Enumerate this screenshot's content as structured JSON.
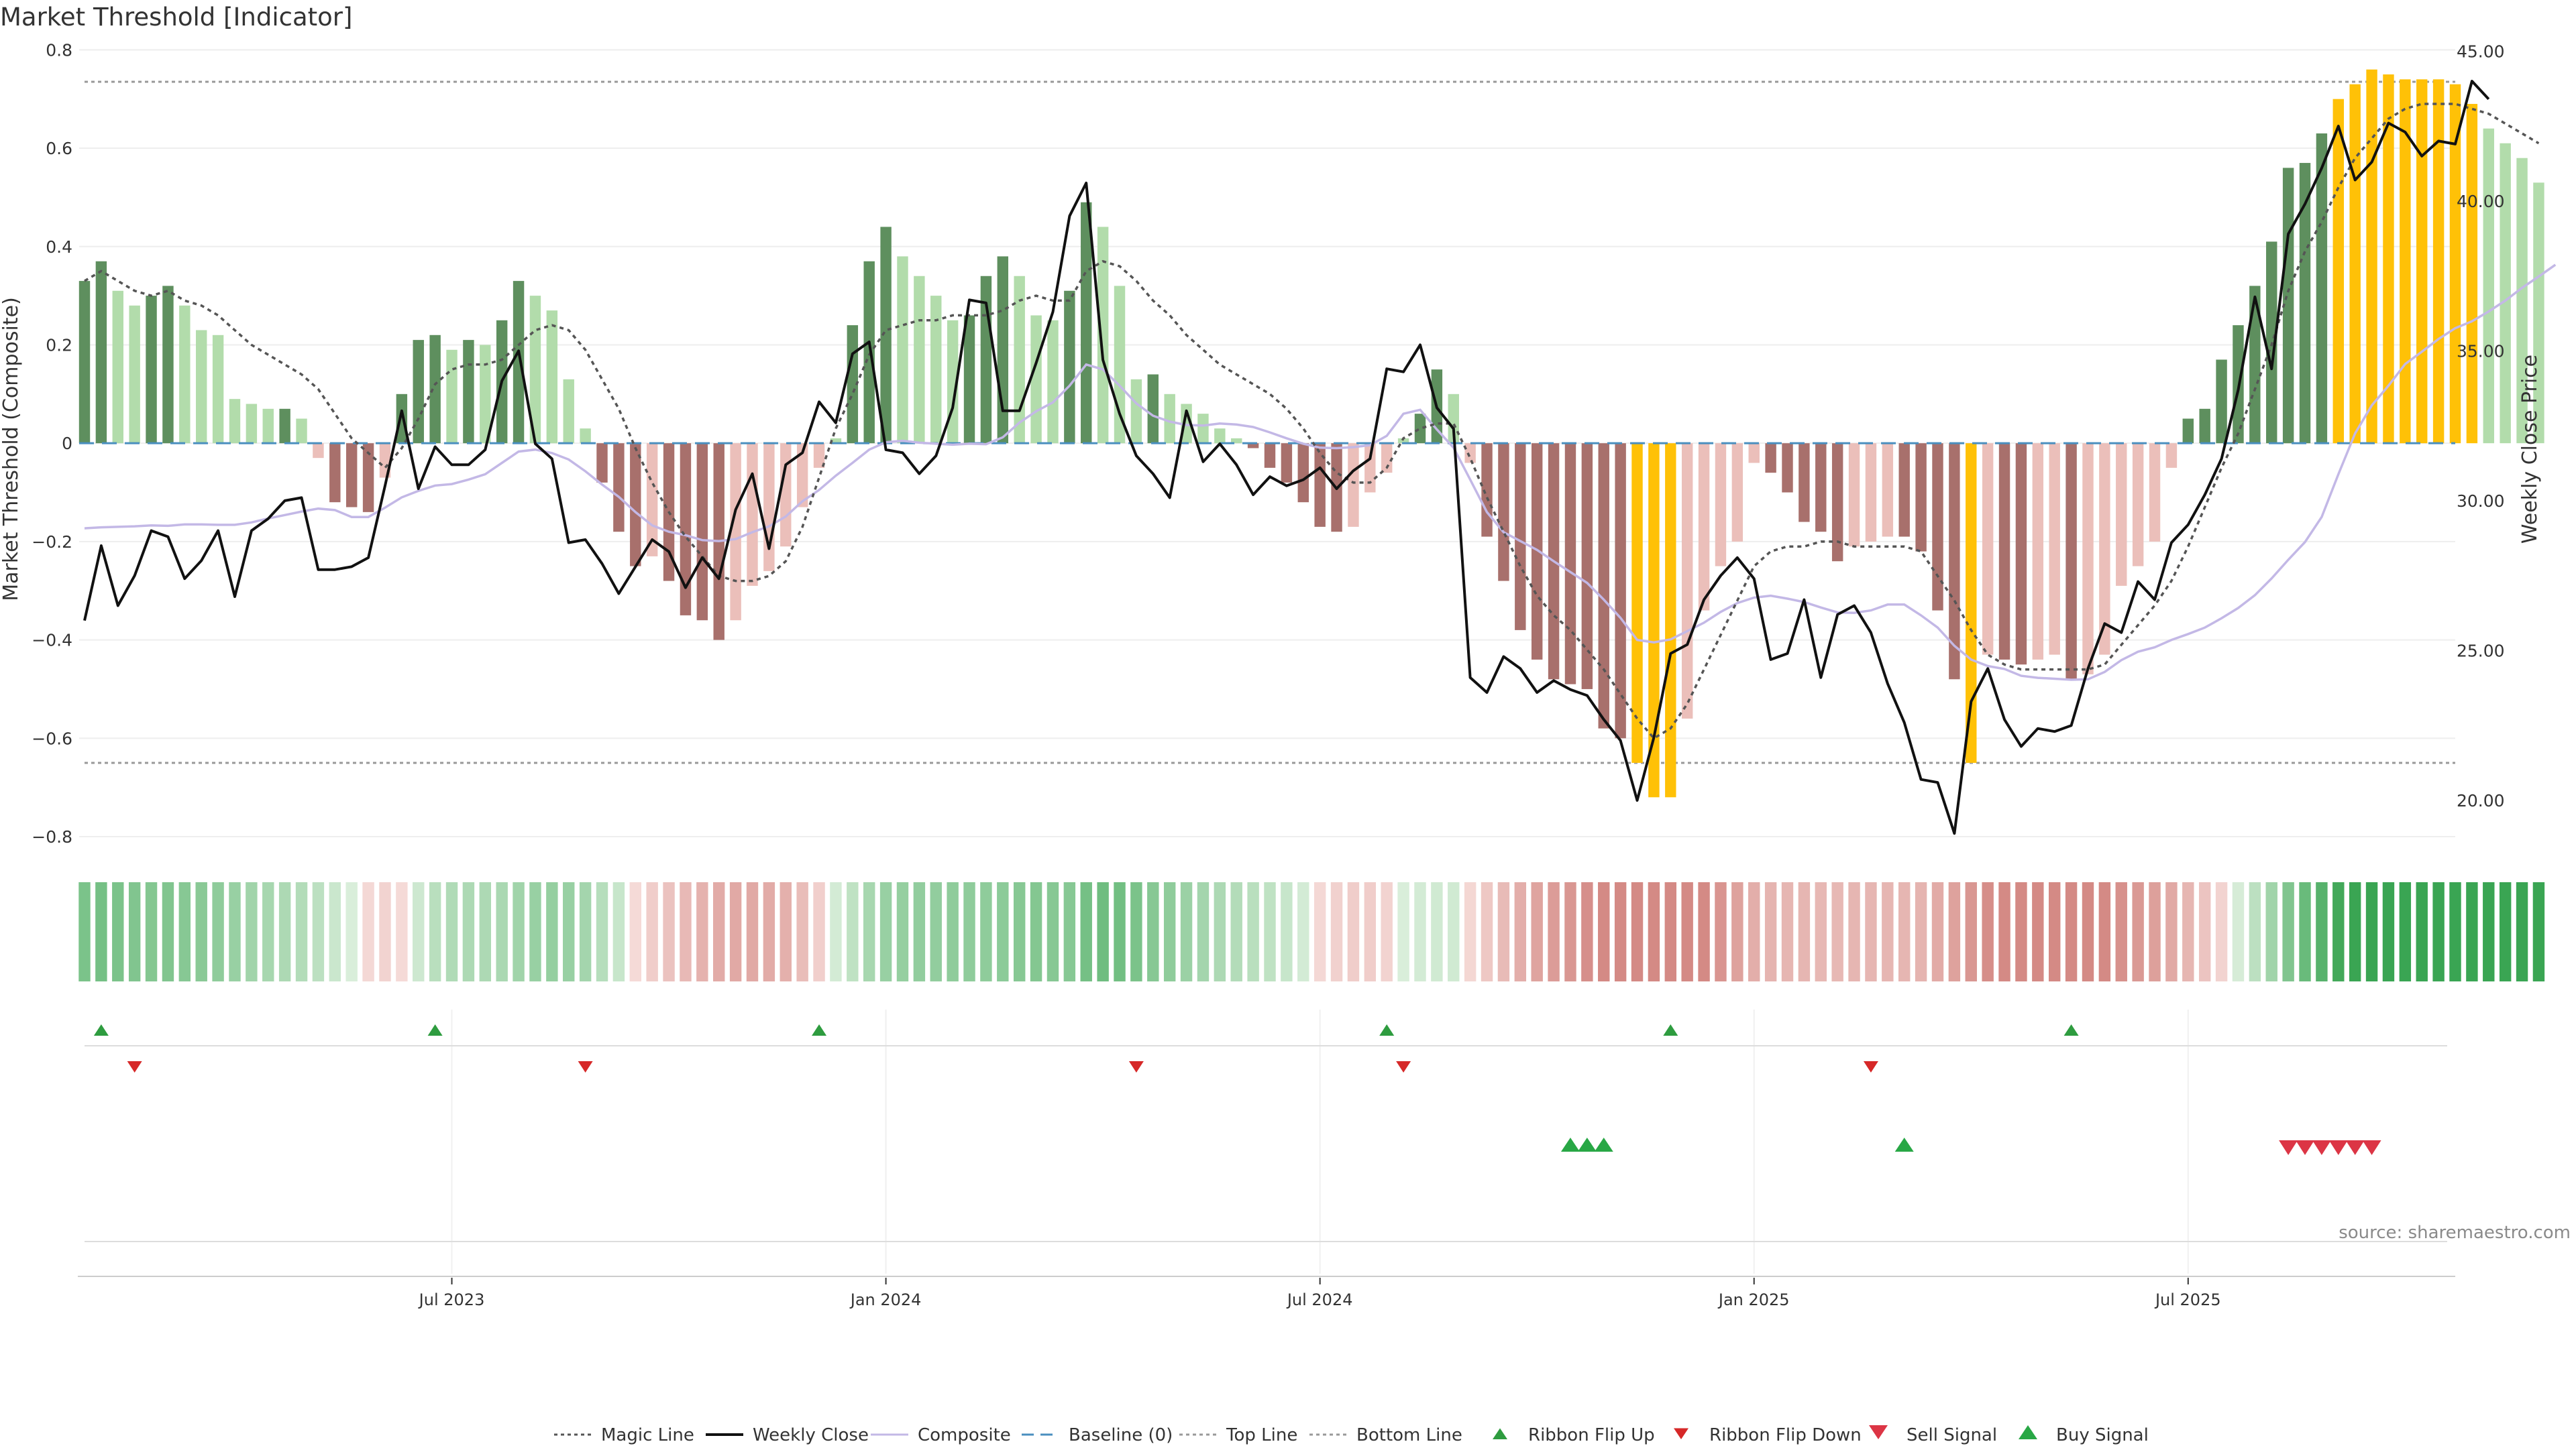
{
  "chart_data": {
    "title": "Market Threshold [Indicator]",
    "type": "bar",
    "ylabel_left": "Market Threshold (Composite)",
    "ylabel_right": "Weekly Close Price",
    "left_ticks": [
      "0.8",
      "0.6",
      "0.4",
      "0.2",
      "0",
      "−0.2",
      "−0.4",
      "−0.6",
      "−0.8"
    ],
    "right_ticks": [
      "45.00",
      "40.00",
      "35.00",
      "30.00",
      "25.00",
      "20.00"
    ],
    "ylim_left": [
      -0.83,
      0.84
    ],
    "ylim_right": [
      18.3,
      45.7
    ],
    "top_line": 0.735,
    "bottom_line": -0.65,
    "x_tick_labels": [
      "Jul 2023",
      "Jan 2024",
      "Jul 2024",
      "Jan 2025",
      "Jul 2025"
    ],
    "x_tick_weeks": [
      22,
      48,
      74,
      100,
      126
    ],
    "n_weeks": 143,
    "composite": [
      0.33,
      0.37,
      0.31,
      0.28,
      0.3,
      0.32,
      0.28,
      0.23,
      0.22,
      0.09,
      0.08,
      0.07,
      0.07,
      0.05,
      -0.03,
      -0.12,
      -0.13,
      -0.14,
      -0.07,
      0.1,
      0.21,
      0.22,
      0.19,
      0.21,
      0.2,
      0.25,
      0.33,
      0.3,
      0.27,
      0.13,
      0.03,
      -0.08,
      -0.18,
      -0.25,
      -0.23,
      -0.28,
      -0.35,
      -0.36,
      -0.4,
      -0.36,
      -0.29,
      -0.26,
      -0.21,
      -0.13,
      -0.05,
      0.01,
      0.24,
      0.37,
      0.44,
      0.38,
      0.34,
      0.3,
      0.25,
      0.26,
      0.34,
      0.38,
      0.34,
      0.26,
      0.25,
      0.31,
      0.49,
      0.44,
      0.32,
      0.13,
      0.14,
      0.1,
      0.08,
      0.06,
      0.03,
      0.01,
      -0.01,
      -0.05,
      -0.08,
      -0.12,
      -0.17,
      -0.18,
      -0.17,
      -0.1,
      -0.06,
      0.01,
      0.06,
      0.15,
      0.1,
      -0.04,
      -0.19,
      -0.28,
      -0.38,
      -0.44,
      -0.48,
      -0.49,
      -0.5,
      -0.58,
      -0.6,
      -0.65,
      -0.72,
      -0.72,
      -0.56,
      -0.34,
      -0.25,
      -0.2,
      -0.04,
      -0.06,
      -0.1,
      -0.16,
      -0.18,
      -0.24,
      -0.21,
      -0.2,
      -0.19,
      -0.19,
      -0.22,
      -0.34,
      -0.48,
      -0.65,
      -0.43,
      -0.44,
      -0.45,
      -0.44,
      -0.43,
      -0.48,
      -0.47,
      -0.43,
      -0.29,
      -0.25,
      -0.2,
      -0.05,
      0.05,
      0.07,
      0.17,
      0.24,
      0.32,
      0.41,
      0.56,
      0.57,
      0.63,
      0.7,
      0.73,
      0.76,
      0.75,
      0.74,
      0.74,
      0.74,
      0.73,
      0.69,
      0.64,
      0.61,
      0.58,
      0.53
    ],
    "weekly_close": [
      26.0,
      28.5,
      26.5,
      27.5,
      29.0,
      28.8,
      27.4,
      28.0,
      29.0,
      26.8,
      29.0,
      29.4,
      30.0,
      30.1,
      27.7,
      27.7,
      27.8,
      28.1,
      30.5,
      33.0,
      30.4,
      31.8,
      31.2,
      31.2,
      31.7,
      34.0,
      35.0,
      31.9,
      31.4,
      28.6,
      28.7,
      27.9,
      26.9,
      27.8,
      28.7,
      28.3,
      27.1,
      28.1,
      27.4,
      29.7,
      30.9,
      28.4,
      31.2,
      31.6,
      33.3,
      32.6,
      34.9,
      35.3,
      31.7,
      31.6,
      30.9,
      31.5,
      33.1,
      36.7,
      36.6,
      33.0,
      33.0,
      34.6,
      36.3,
      39.5,
      40.6,
      34.7,
      32.9,
      31.5,
      30.9,
      30.1,
      33.0,
      31.3,
      31.9,
      31.2,
      30.2,
      30.8,
      30.5,
      30.7,
      31.1,
      30.4,
      31.0,
      31.4,
      34.4,
      34.3,
      35.2,
      33.1,
      32.4,
      24.1,
      23.6,
      24.8,
      24.4,
      23.6,
      24.0,
      23.7,
      23.5,
      22.7,
      22.0,
      20.0,
      22.1,
      24.9,
      25.2,
      26.7,
      27.5,
      28.1,
      27.4,
      24.7,
      24.9,
      26.7,
      24.1,
      26.2,
      26.5,
      25.6,
      23.9,
      22.6,
      20.7,
      20.6,
      18.9,
      23.3,
      24.4,
      22.7,
      21.8,
      22.4,
      22.3,
      22.5,
      24.4,
      25.9,
      25.6,
      27.3,
      26.7,
      28.6,
      29.2,
      30.2,
      31.4,
      33.7,
      36.8,
      34.4,
      38.9,
      39.9,
      41.1,
      42.5,
      40.7,
      41.3,
      42.6,
      42.3,
      41.5,
      42.0,
      41.9,
      44.0,
      43.4
    ],
    "composite_smooth": [
      -0.173,
      -0.171,
      -0.17,
      -0.169,
      -0.167,
      -0.168,
      -0.165,
      -0.165,
      -0.166,
      -0.166,
      -0.161,
      -0.153,
      -0.146,
      -0.139,
      -0.133,
      -0.136,
      -0.15,
      -0.15,
      -0.131,
      -0.11,
      -0.097,
      -0.086,
      -0.083,
      -0.074,
      -0.063,
      -0.04,
      -0.017,
      -0.013,
      -0.02,
      -0.033,
      -0.057,
      -0.084,
      -0.109,
      -0.14,
      -0.167,
      -0.18,
      -0.187,
      -0.197,
      -0.199,
      -0.195,
      -0.181,
      -0.169,
      -0.149,
      -0.118,
      -0.095,
      -0.066,
      -0.04,
      -0.013,
      0.002,
      0.005,
      0.001,
      -0.001,
      -0.003,
      -0.001,
      -0.002,
      0.012,
      0.042,
      0.065,
      0.083,
      0.117,
      0.16,
      0.15,
      0.117,
      0.081,
      0.056,
      0.044,
      0.037,
      0.036,
      0.04,
      0.038,
      0.033,
      0.022,
      0.01,
      -0.001,
      -0.009,
      -0.01,
      -0.008,
      -0.004,
      0.015,
      0.06,
      0.068,
      0.028,
      -0.009,
      -0.074,
      -0.14,
      -0.181,
      -0.199,
      -0.217,
      -0.24,
      -0.262,
      -0.284,
      -0.318,
      -0.355,
      -0.4,
      -0.405,
      -0.399,
      -0.382,
      -0.365,
      -0.343,
      -0.325,
      -0.314,
      -0.31,
      -0.316,
      -0.323,
      -0.334,
      -0.344,
      -0.345,
      -0.34,
      -0.328,
      -0.328,
      -0.35,
      -0.375,
      -0.412,
      -0.44,
      -0.453,
      -0.459,
      -0.473,
      -0.477,
      -0.479,
      -0.481,
      -0.48,
      -0.465,
      -0.441,
      -0.424,
      -0.415,
      -0.4,
      -0.388,
      -0.375,
      -0.356,
      -0.335,
      -0.309,
      -0.275,
      -0.237,
      -0.201,
      -0.15,
      -0.063,
      0.02,
      0.077,
      0.117,
      0.161,
      0.186,
      0.212,
      0.234,
      0.248,
      0.268,
      0.29,
      0.316,
      0.339,
      0.363
    ],
    "magic_line": [
      0.33,
      0.35,
      0.33,
      0.31,
      0.3,
      0.31,
      0.29,
      0.28,
      0.26,
      0.23,
      0.2,
      0.18,
      0.16,
      0.14,
      0.11,
      0.06,
      0.01,
      -0.02,
      -0.05,
      -0.01,
      0.05,
      0.12,
      0.15,
      0.16,
      0.16,
      0.17,
      0.2,
      0.23,
      0.24,
      0.23,
      0.19,
      0.13,
      0.07,
      -0.01,
      -0.08,
      -0.14,
      -0.19,
      -0.23,
      -0.27,
      -0.28,
      -0.28,
      -0.27,
      -0.24,
      -0.17,
      -0.07,
      0.03,
      0.1,
      0.18,
      0.23,
      0.24,
      0.25,
      0.25,
      0.26,
      0.26,
      0.26,
      0.27,
      0.29,
      0.3,
      0.29,
      0.29,
      0.35,
      0.37,
      0.36,
      0.33,
      0.29,
      0.26,
      0.22,
      0.19,
      0.16,
      0.14,
      0.12,
      0.1,
      0.07,
      0.03,
      -0.02,
      -0.06,
      -0.08,
      -0.08,
      -0.05,
      0.01,
      0.03,
      0.04,
      0.04,
      -0.03,
      -0.11,
      -0.18,
      -0.25,
      -0.31,
      -0.35,
      -0.38,
      -0.42,
      -0.46,
      -0.51,
      -0.56,
      -0.6,
      -0.58,
      -0.53,
      -0.46,
      -0.39,
      -0.32,
      -0.25,
      -0.22,
      -0.21,
      -0.21,
      -0.2,
      -0.2,
      -0.21,
      -0.21,
      -0.21,
      -0.21,
      -0.22,
      -0.27,
      -0.32,
      -0.38,
      -0.43,
      -0.45,
      -0.46,
      -0.46,
      -0.46,
      -0.46,
      -0.46,
      -0.45,
      -0.41,
      -0.37,
      -0.33,
      -0.28,
      -0.21,
      -0.13,
      -0.05,
      0.02,
      0.11,
      0.2,
      0.31,
      0.39,
      0.45,
      0.52,
      0.58,
      0.62,
      0.66,
      0.68,
      0.69,
      0.69,
      0.69,
      0.68,
      0.67,
      0.65,
      0.63,
      0.61
    ],
    "ribbon_flip_up_weeks": [
      1,
      21,
      44,
      78,
      95,
      119
    ],
    "ribbon_flip_down_weeks": [
      3,
      30,
      63,
      79,
      107
    ],
    "buy_signal_weeks": [
      89,
      90,
      91,
      109
    ],
    "sell_signal_weeks": [
      132,
      133,
      134,
      135,
      136,
      137
    ],
    "legend": [
      {
        "label": "Magic Line",
        "marker": "dotted-line",
        "color": "#555555"
      },
      {
        "label": "Weekly Close",
        "marker": "solid-line",
        "color": "#111111"
      },
      {
        "label": "Composite",
        "marker": "solid-line",
        "color": "#c3b8e6"
      },
      {
        "label": "Baseline (0)",
        "marker": "dashed-line",
        "color": "#4a8fbf"
      },
      {
        "label": "Top Line",
        "marker": "dotted-line",
        "color": "#999999"
      },
      {
        "label": "Bottom Line",
        "marker": "dotted-line",
        "color": "#999999"
      },
      {
        "label": "Ribbon Flip Up",
        "marker": "triangle-up-small",
        "color": "#2e9c3f"
      },
      {
        "label": "Ribbon Flip Down",
        "marker": "triangle-down-small",
        "color": "#d62828"
      },
      {
        "label": "Sell Signal",
        "marker": "triangle-down",
        "color": "#dc3545"
      },
      {
        "label": "Buy Signal",
        "marker": "triangle-up",
        "color": "#28a745"
      }
    ],
    "colors": {
      "bar_dark_green": "#5e8f5e",
      "bar_light_green": "#b2dcab",
      "bar_dark_red": "#a8706c",
      "bar_light_red": "#ebbfba",
      "bar_extreme": "#ffc107",
      "weekly_close": "#111111",
      "composite_line": "#c3b8e6",
      "magic_line": "#555555",
      "baseline": "#4a8fbf",
      "threshold_lines": "#999999",
      "flip_up": "#2e9c3f",
      "flip_down": "#d62828",
      "buy": "#28a745",
      "sell": "#dc3545"
    }
  },
  "source": "source: sharemaestro.com"
}
